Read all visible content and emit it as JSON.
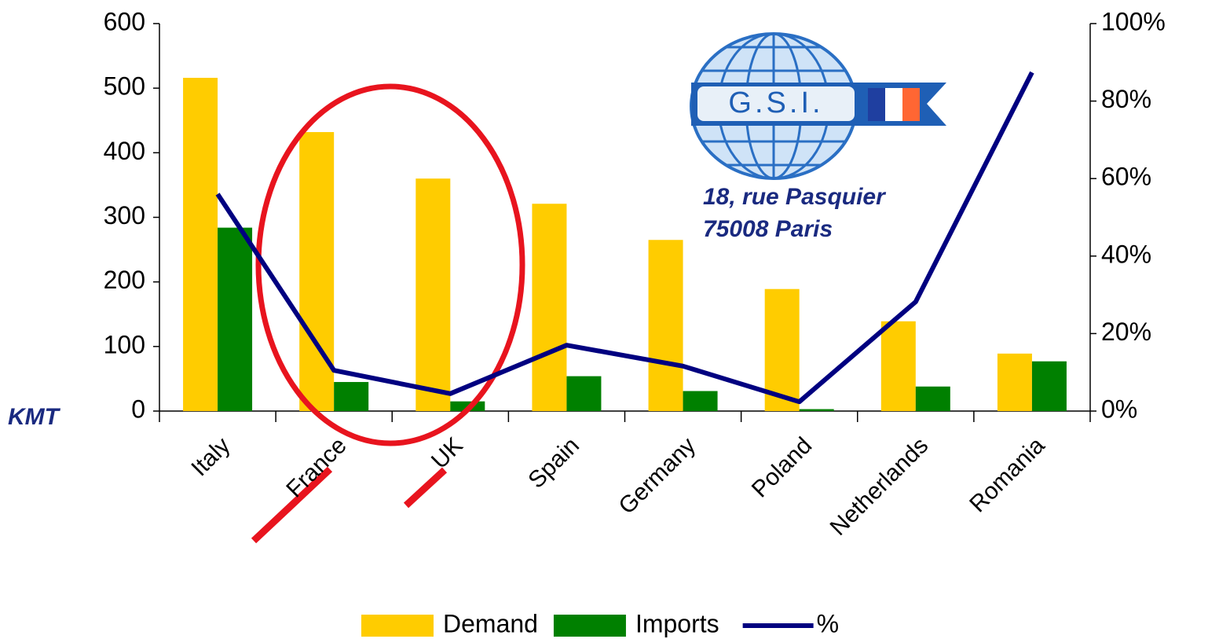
{
  "chart_data": {
    "type": "bar-line",
    "y_label": "KMT",
    "categories": [
      "Italy",
      "France",
      "UK",
      "Spain",
      "Germany",
      "Poland",
      "Netherlands",
      "Romania"
    ],
    "series": [
      {
        "name": "Demand",
        "type": "bar",
        "color": "#ffcc00",
        "values": [
          516,
          432,
          360,
          321,
          265,
          189,
          139,
          89
        ]
      },
      {
        "name": "Imports",
        "type": "bar",
        "color": "#008000",
        "values": [
          284,
          45,
          15,
          54,
          31,
          3,
          38,
          77
        ]
      },
      {
        "name": "%",
        "type": "line",
        "color": "#000080",
        "axis": "y2",
        "values": [
          56,
          10.5,
          4.5,
          17,
          11.6,
          2.4,
          28.2,
          87.4
        ]
      }
    ],
    "ylim": [
      0,
      600
    ],
    "yticks": [
      0,
      100,
      200,
      300,
      400,
      500,
      600
    ],
    "y2lim": [
      0,
      100
    ],
    "y2ticks": [
      {
        "value": 0,
        "label": "0%"
      },
      {
        "value": 20,
        "label": "20%"
      },
      {
        "value": 40,
        "label": "40%"
      },
      {
        "value": 60,
        "label": "60%"
      },
      {
        "value": 80,
        "label": "80%"
      },
      {
        "value": 100,
        "label": "100%"
      }
    ],
    "legend": "bottom",
    "logo": {
      "name": "G.S.I.",
      "address_line1": "18, rue Pasquier",
      "address_line2": "75008 Paris"
    }
  }
}
